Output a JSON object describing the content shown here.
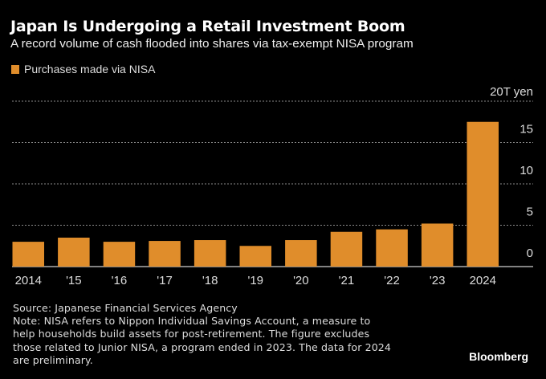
{
  "header": {
    "title": "Japan Is Undergoing a Retail Investment Boom",
    "subtitle": "A record volume of cash flooded into shares via tax-exempt NISA program"
  },
  "legend": {
    "label": "Purchases made via NISA",
    "color": "#e08d2b"
  },
  "chart_data": {
    "type": "bar",
    "title": "Japan Is Undergoing a Retail Investment Boom",
    "subtitle": "A record volume of cash flooded into shares via tax-exempt NISA program",
    "categories": [
      "2014",
      "'15",
      "'16",
      "'17",
      "'18",
      "'19",
      "'20",
      "'21",
      "'22",
      "'23",
      "2024"
    ],
    "series": [
      {
        "name": "Purchases made via NISA",
        "color": "#e08d2b",
        "values": [
          3.0,
          3.5,
          3.0,
          3.1,
          3.2,
          2.5,
          3.2,
          4.2,
          4.5,
          5.2,
          17.5
        ]
      }
    ],
    "xlabel": "",
    "ylabel": "",
    "y_unit_label": "20T yen",
    "ylim": [
      0,
      20
    ],
    "yticks": [
      0,
      5,
      10,
      15,
      20
    ],
    "ytick_labels": [
      "0",
      "5",
      "10",
      "15",
      "20T yen"
    ],
    "grid": true,
    "y_axis_side": "right",
    "legend_position": "top-left"
  },
  "footer": {
    "source": "Source: Japanese Financial Services Agency",
    "note_lines": [
      "Note: NISA refers to Nippon Individual Savings Account, a measure to",
      "help households build assets for post-retirement. The figure excludes",
      "those related to Junior NISA, a program ended in 2023. The data for 2024",
      "are preliminary."
    ],
    "brand": "Bloomberg"
  }
}
